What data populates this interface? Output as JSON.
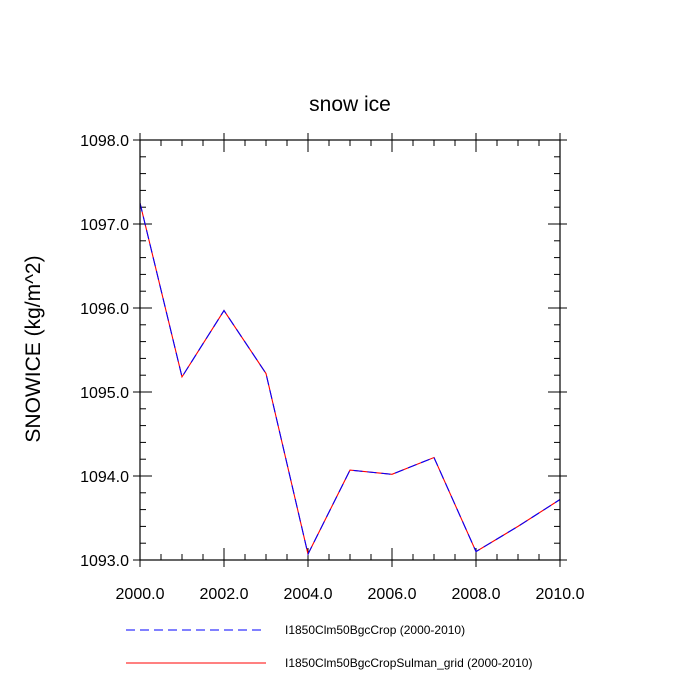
{
  "chart_data": {
    "type": "line",
    "title": "snow ice",
    "xlabel": "",
    "ylabel": "SNOWICE  (kg/m^2)",
    "xlim": [
      2000,
      2010
    ],
    "ylim": [
      1093,
      1098
    ],
    "x_ticks": [
      "2000.0",
      "2002.0",
      "2004.0",
      "2006.0",
      "2008.0",
      "2010.0"
    ],
    "y_ticks": [
      "1093.0",
      "1094.0",
      "1095.0",
      "1096.0",
      "1097.0",
      "1098.0"
    ],
    "x": [
      2000,
      2001,
      2002,
      2003,
      2004,
      2005,
      2006,
      2007,
      2008,
      2009,
      2010
    ],
    "series": [
      {
        "name": "I1850Clm50BgcCrop (2000-2010)",
        "color": "#0000ff",
        "style": "dashed",
        "values": [
          1097.25,
          1095.18,
          1095.97,
          1095.22,
          1093.07,
          1094.07,
          1094.02,
          1094.22,
          1093.1,
          1093.4,
          1093.72
        ]
      },
      {
        "name": "I1850Clm50BgcCropSulman_grid (2000-2010)",
        "color": "#ff0000",
        "style": "solid",
        "values": [
          1097.25,
          1095.18,
          1095.97,
          1095.22,
          1093.07,
          1094.07,
          1094.02,
          1094.22,
          1093.1,
          1093.4,
          1093.72
        ]
      }
    ],
    "grid": false,
    "legend_position": "bottom"
  }
}
